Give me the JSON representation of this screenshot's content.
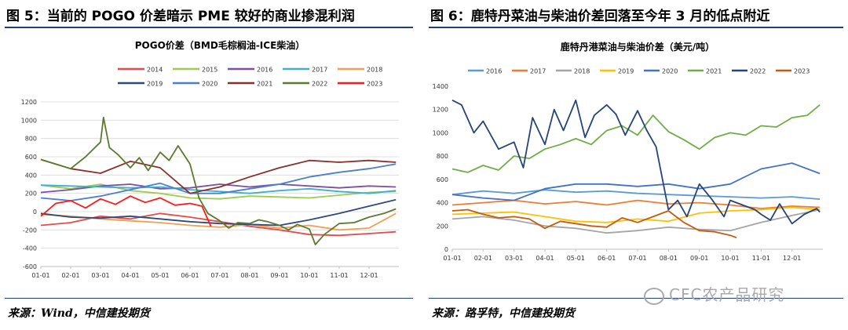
{
  "figures": [
    {
      "title": "图 5：当前的 POGO 价差暗示 PME 较好的商业掺混利润",
      "source": "来源：Wind，中信建投期货",
      "chart_data": {
        "type": "line",
        "title": "POGO价差（BMD毛棕榈油-ICE柴油）",
        "x_ticks": [
          "01-01",
          "02-01",
          "03-01",
          "04-01",
          "05-01",
          "06-01",
          "07-01",
          "08-01",
          "09-01",
          "10-01",
          "11-01",
          "12-01"
        ],
        "ylim": [
          -600,
          1200
        ],
        "y_ticks": [
          -600,
          -400,
          -200,
          0,
          200,
          400,
          600,
          800,
          1000,
          1200
        ],
        "grid": true,
        "legend_position": "top",
        "series": [
          {
            "name": "2014",
            "color": "#e64b4b",
            "x": [
              0,
              1,
              2,
              3,
              4,
              5,
              6,
              7,
              8,
              9,
              10,
              11,
              11.9
            ],
            "values": [
              -150,
              -120,
              -50,
              -80,
              -20,
              -60,
              -110,
              -160,
              -200,
              -250,
              -260,
              -240,
              -220
            ]
          },
          {
            "name": "2015",
            "color": "#9ccc50",
            "x": [
              0,
              1,
              2,
              3,
              4,
              5,
              6,
              7,
              8,
              9,
              10,
              11,
              11.9
            ],
            "values": [
              290,
              250,
              300,
              230,
              200,
              150,
              140,
              170,
              160,
              150,
              180,
              210,
              220
            ]
          },
          {
            "name": "2016",
            "color": "#7b4fa6",
            "x": [
              0,
              1,
              2,
              3,
              4,
              5,
              6,
              7,
              8,
              9,
              10,
              11,
              11.9
            ],
            "values": [
              210,
              240,
              280,
              300,
              250,
              260,
              300,
              270,
              300,
              280,
              260,
              280,
              270
            ]
          },
          {
            "name": "2017",
            "color": "#3fb0c9",
            "x": [
              0,
              1,
              2,
              3,
              4,
              5,
              6,
              7,
              8,
              9,
              10,
              11,
              11.9
            ],
            "values": [
              290,
              280,
              270,
              260,
              270,
              240,
              220,
              200,
              230,
              250,
              220,
              200,
              230
            ]
          },
          {
            "name": "2018",
            "color": "#f0a050",
            "x": [
              0,
              1,
              2,
              3,
              4,
              5,
              6,
              7,
              8,
              9,
              10,
              11,
              11.9
            ],
            "values": [
              -30,
              -50,
              -80,
              -100,
              -120,
              -150,
              -170,
              -140,
              -180,
              -150,
              -200,
              -180,
              -20
            ]
          },
          {
            "name": "2019",
            "color": "#2e4a7a",
            "x": [
              0,
              1,
              2,
              3,
              4,
              5,
              6,
              7,
              8,
              9,
              10,
              11,
              11.9
            ],
            "values": [
              -20,
              -60,
              -70,
              -50,
              -80,
              -110,
              -130,
              -140,
              -150,
              -90,
              -20,
              60,
              130
            ]
          },
          {
            "name": "2020",
            "color": "#4a7fd0",
            "x": [
              0,
              1,
              2,
              3,
              4,
              5,
              6,
              7,
              8,
              9,
              10,
              11,
              11.9
            ],
            "values": [
              150,
              120,
              170,
              240,
              310,
              200,
              200,
              250,
              300,
              380,
              430,
              470,
              520
            ]
          },
          {
            "name": "2021",
            "color": "#8b2e2e",
            "x": [
              0,
              1,
              2,
              3,
              4,
              5,
              6,
              7,
              8,
              9,
              10,
              11,
              11.9
            ],
            "values": [
              570,
              470,
              420,
              550,
              480,
              200,
              270,
              380,
              480,
              560,
              540,
              560,
              540
            ]
          },
          {
            "name": "2022",
            "color": "#5a7a2e",
            "x": [
              0,
              0.5,
              1,
              1.5,
              2,
              2.1,
              2.3,
              2.6,
              3,
              3.3,
              3.6,
              4,
              4.3,
              4.6,
              5,
              5.3,
              5.6,
              6,
              6.3,
              6.6,
              7,
              7.3,
              7.6,
              8,
              8.3,
              8.6,
              9,
              9.2,
              9.5,
              10,
              10.5,
              11,
              11.5,
              11.9
            ],
            "values": [
              570,
              520,
              470,
              600,
              760,
              1030,
              700,
              620,
              480,
              590,
              450,
              650,
              560,
              720,
              520,
              150,
              -20,
              -100,
              -180,
              -120,
              -130,
              -90,
              -110,
              -150,
              -200,
              -140,
              -190,
              -360,
              -250,
              -130,
              -120,
              -60,
              -20,
              30
            ]
          },
          {
            "name": "2023",
            "color": "#ff1a1a",
            "x": [
              0,
              0.5,
              1,
              1.5,
              2,
              2.5,
              3,
              3.5,
              4,
              4.5,
              5,
              5.4,
              5.7
            ],
            "values": [
              -50,
              90,
              120,
              40,
              140,
              80,
              170,
              100,
              150,
              70,
              90,
              60,
              -160
            ]
          }
        ]
      }
    },
    {
      "title": "图 6：鹿特丹菜油与柴油价差回落至今年 3 月的低点附近",
      "source": "来源：路孚特，中信建投期货",
      "chart_data": {
        "type": "line",
        "title": "鹿特丹港菜油与柴油价差（美元/吨）",
        "x_ticks": [
          "01-01",
          "02-01",
          "03-01",
          "04-01",
          "05-01",
          "06-01",
          "07-01",
          "08-01",
          "09-01",
          "10-01",
          "11-01",
          "12-01"
        ],
        "ylim": [
          0,
          1400
        ],
        "y_ticks": [
          0,
          200,
          400,
          600,
          800,
          1000,
          1200,
          1400
        ],
        "grid": false,
        "legend_position": "top",
        "series": [
          {
            "name": "2016",
            "color": "#5b9bd5",
            "x": [
              0,
              1,
              2,
              3,
              4,
              5,
              6,
              7,
              8,
              9,
              10,
              11,
              11.9
            ],
            "values": [
              470,
              500,
              480,
              510,
              490,
              500,
              480,
              470,
              460,
              450,
              440,
              450,
              430
            ]
          },
          {
            "name": "2017",
            "color": "#ed7d31",
            "x": [
              0,
              1,
              2,
              3,
              4,
              5,
              6,
              7,
              8,
              9,
              10,
              11,
              11.9
            ],
            "values": [
              380,
              400,
              420,
              390,
              410,
              380,
              420,
              390,
              400,
              380,
              350,
              370,
              360
            ]
          },
          {
            "name": "2018",
            "color": "#a5a5a5",
            "x": [
              0,
              1,
              2,
              3,
              4,
              5,
              6,
              7,
              8,
              9,
              10,
              11,
              11.9
            ],
            "values": [
              260,
              280,
              250,
              200,
              180,
              140,
              160,
              190,
              170,
              160,
              230,
              290,
              340
            ]
          },
          {
            "name": "2019",
            "color": "#ffc000",
            "x": [
              0,
              1,
              2,
              3,
              4,
              5,
              6,
              7,
              8,
              9,
              10,
              11,
              11.9
            ],
            "values": [
              300,
              310,
              320,
              280,
              240,
              230,
              260,
              240,
              310,
              330,
              340,
              360,
              340
            ]
          },
          {
            "name": "2020",
            "color": "#4472c4",
            "x": [
              0,
              1,
              2,
              3,
              4,
              5,
              6,
              7,
              8,
              9,
              10,
              11,
              11.9
            ],
            "values": [
              470,
              440,
              420,
              520,
              560,
              560,
              540,
              560,
              520,
              560,
              690,
              740,
              650
            ]
          },
          {
            "name": "2021",
            "color": "#70ad47",
            "x": [
              0,
              0.5,
              1,
              1.5,
              2,
              2.5,
              3,
              3.5,
              4,
              4.5,
              5,
              5.5,
              6,
              6.5,
              7,
              7.5,
              8,
              8.5,
              9,
              9.5,
              10,
              10.5,
              11,
              11.5,
              11.9
            ],
            "values": [
              690,
              660,
              720,
              680,
              800,
              780,
              860,
              900,
              950,
              900,
              1020,
              1060,
              980,
              1150,
              1010,
              940,
              860,
              960,
              1000,
              980,
              1060,
              1050,
              1130,
              1150,
              1240
            ]
          },
          {
            "name": "2022",
            "color": "#264478",
            "x": [
              0,
              0.3,
              0.7,
              1,
              1.5,
              2,
              2.3,
              2.6,
              3,
              3.3,
              3.6,
              4,
              4.3,
              4.6,
              5,
              5.3,
              5.6,
              6,
              6.3,
              6.6,
              7,
              7.3,
              7.6,
              8,
              8.4,
              8.8,
              9,
              9.4,
              9.8,
              10,
              10.3,
              10.6,
              11,
              11.4,
              11.8,
              11.9
            ],
            "values": [
              1280,
              1240,
              1000,
              1100,
              860,
              920,
              700,
              1130,
              900,
              1200,
              1020,
              1280,
              960,
              1150,
              1240,
              1160,
              980,
              1190,
              1020,
              880,
              340,
              420,
              280,
              560,
              430,
              280,
              420,
              380,
              340,
              300,
              250,
              390,
              220,
              300,
              350,
              320
            ]
          },
          {
            "name": "2023",
            "color": "#c55a11",
            "x": [
              0,
              0.5,
              1,
              1.5,
              2,
              2.5,
              3,
              3.5,
              4,
              4.5,
              5,
              5.5,
              6,
              6.5,
              7,
              7.5,
              8,
              8.5,
              9,
              9.2
            ],
            "values": [
              330,
              340,
              300,
              270,
              280,
              260,
              180,
              240,
              220,
              200,
              190,
              270,
              230,
              280,
              330,
              230,
              160,
              150,
              120,
              100
            ]
          }
        ]
      }
    }
  ],
  "watermark": "CFC农产品研究"
}
